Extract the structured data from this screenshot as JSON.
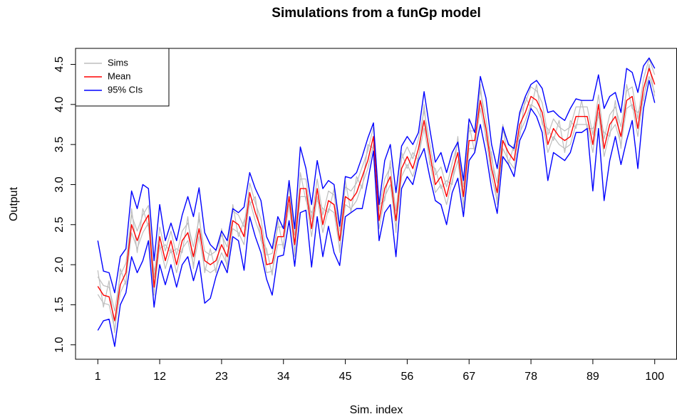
{
  "chart_data": {
    "type": "line",
    "title": "Simulations from a funGp model",
    "x_label": "Sim. index",
    "y_label": "Output",
    "x": [
      1,
      2,
      3,
      4,
      5,
      6,
      7,
      8,
      9,
      10,
      11,
      12,
      13,
      14,
      15,
      16,
      17,
      18,
      19,
      20,
      21,
      22,
      23,
      24,
      25,
      26,
      27,
      28,
      29,
      30,
      31,
      32,
      33,
      34,
      35,
      36,
      37,
      38,
      39,
      40,
      41,
      42,
      43,
      44,
      45,
      46,
      47,
      48,
      49,
      50,
      51,
      52,
      53,
      54,
      55,
      56,
      57,
      58,
      59,
      60,
      61,
      62,
      63,
      64,
      65,
      66,
      67,
      68,
      69,
      70,
      71,
      72,
      73,
      74,
      75,
      76,
      77,
      78,
      79,
      80,
      81,
      82,
      83,
      84,
      85,
      86,
      87,
      88,
      89,
      90,
      91,
      92,
      93,
      94,
      95,
      96,
      97,
      98,
      99,
      100
    ],
    "xlim": [
      -2.96,
      103.96
    ],
    "xticks": [
      1,
      12,
      23,
      34,
      45,
      56,
      67,
      78,
      89,
      100
    ],
    "ylim": [
      0.82,
      4.7
    ],
    "yticks": [
      1.0,
      1.5,
      2.0,
      2.5,
      3.0,
      3.5,
      4.0,
      4.5
    ],
    "yticks_text": [
      "1.0",
      "1.5",
      "2.0",
      "2.5",
      "3.0",
      "3.5",
      "4.0",
      "4.5"
    ],
    "legend": "top-left",
    "series": [
      {
        "name": "Sims",
        "color": "#bebebe",
        "lines": [
          [
            1.85,
            1.74,
            1.72,
            1.42,
            1.87,
            2.02,
            2.62,
            2.42,
            2.62,
            2.74,
            1.84,
            2.47,
            2.17,
            2.42,
            2.12,
            2.42,
            2.52,
            2.22,
            2.57,
            2.17,
            2.12,
            2.17,
            2.37,
            2.22,
            2.67,
            2.62,
            2.47,
            3.02,
            2.77,
            2.57,
            2.12,
            2.14,
            2.47,
            2.47,
            2.97,
            2.37,
            3.07,
            3.07,
            2.57,
            3.07,
            2.62,
            2.92,
            2.87,
            2.42,
            2.97,
            2.92,
            3.02,
            3.22,
            3.42,
            3.72,
            2.67,
            3.07,
            3.22,
            2.67,
            3.32,
            3.47,
            3.32,
            3.57,
            3.92,
            3.52,
            3.12,
            3.22,
            2.97,
            3.27,
            3.52,
            2.97,
            3.67,
            3.67,
            4.17,
            3.82,
            3.32,
            3.02,
            3.67,
            3.52,
            3.42,
            3.87,
            4.02,
            4.22,
            4.17,
            4.02,
            3.62,
            3.82,
            3.72,
            3.67,
            3.72,
            3.97,
            3.97,
            3.97,
            3.62,
            4.12,
            3.57,
            3.87,
            3.97,
            3.72,
            4.17,
            4.22,
            3.82,
            4.32,
            4.57,
            4.37
          ],
          [
            1.63,
            1.52,
            1.5,
            1.2,
            1.65,
            1.8,
            2.4,
            2.2,
            2.4,
            2.52,
            1.62,
            2.25,
            1.95,
            2.2,
            1.9,
            2.2,
            2.3,
            2.0,
            2.35,
            1.95,
            1.9,
            1.95,
            2.15,
            2.0,
            2.45,
            2.4,
            2.25,
            2.8,
            2.55,
            2.35,
            1.9,
            1.92,
            2.25,
            2.25,
            2.75,
            2.15,
            2.85,
            2.85,
            2.35,
            2.85,
            2.4,
            2.7,
            2.65,
            2.2,
            2.75,
            2.7,
            2.8,
            3.0,
            3.2,
            3.5,
            2.45,
            2.85,
            3.0,
            2.45,
            3.1,
            3.25,
            3.1,
            3.35,
            3.7,
            3.3,
            2.9,
            3.0,
            2.75,
            3.05,
            3.3,
            2.75,
            3.45,
            3.45,
            3.95,
            3.6,
            3.1,
            2.8,
            3.45,
            3.3,
            3.2,
            3.65,
            3.8,
            4.0,
            3.95,
            3.8,
            3.4,
            3.6,
            3.5,
            3.45,
            3.5,
            3.75,
            3.75,
            3.75,
            3.4,
            3.9,
            3.35,
            3.65,
            3.75,
            3.5,
            3.95,
            4.0,
            3.6,
            4.1,
            4.35,
            4.15
          ],
          [
            1.93,
            1.47,
            1.8,
            1.15,
            1.95,
            1.75,
            2.7,
            2.15,
            2.7,
            2.47,
            1.92,
            2.2,
            2.25,
            2.15,
            2.2,
            2.15,
            2.6,
            1.95,
            2.65,
            1.9,
            2.2,
            1.9,
            2.45,
            1.95,
            2.75,
            2.35,
            2.55,
            2.75,
            2.85,
            2.3,
            2.2,
            1.87,
            2.55,
            2.2,
            3.05,
            2.1,
            3.15,
            2.8,
            2.65,
            2.8,
            2.7,
            2.65,
            2.95,
            2.15,
            3.05,
            2.65,
            3.1,
            2.95,
            3.5,
            3.45,
            2.75,
            2.8,
            3.3,
            2.4,
            3.4,
            3.2,
            3.4,
            3.3,
            4.0,
            3.25,
            3.2,
            2.95,
            3.05,
            3.0,
            3.6,
            2.7,
            3.75,
            3.4,
            4.25,
            3.55,
            3.4,
            2.75,
            3.75,
            3.25,
            3.5,
            3.6,
            4.1,
            3.95,
            4.25,
            3.75,
            3.7,
            3.55,
            3.8,
            3.4,
            3.8,
            3.7,
            4.05,
            3.7,
            3.7,
            3.85,
            3.65,
            3.6,
            4.05,
            3.45,
            4.25,
            3.95,
            3.9,
            4.05,
            4.5,
            4.1
          ]
        ]
      },
      {
        "name": "Mean",
        "color": "#ff0000",
        "values": [
          1.73,
          1.62,
          1.6,
          1.3,
          1.75,
          1.9,
          2.5,
          2.3,
          2.5,
          2.62,
          1.72,
          2.35,
          2.05,
          2.3,
          2.0,
          2.3,
          2.4,
          2.1,
          2.45,
          2.05,
          2.0,
          2.05,
          2.25,
          2.1,
          2.55,
          2.5,
          2.35,
          2.9,
          2.65,
          2.45,
          2.0,
          2.02,
          2.35,
          2.35,
          2.85,
          2.25,
          2.95,
          2.95,
          2.45,
          2.95,
          2.5,
          2.8,
          2.75,
          2.3,
          2.85,
          2.8,
          2.9,
          3.1,
          3.3,
          3.6,
          2.55,
          2.95,
          3.1,
          2.55,
          3.2,
          3.35,
          3.2,
          3.45,
          3.8,
          3.4,
          3.0,
          3.1,
          2.85,
          3.15,
          3.4,
          2.85,
          3.55,
          3.55,
          4.05,
          3.7,
          3.2,
          2.9,
          3.55,
          3.4,
          3.3,
          3.75,
          3.9,
          4.1,
          4.05,
          3.9,
          3.5,
          3.7,
          3.6,
          3.55,
          3.6,
          3.85,
          3.85,
          3.85,
          3.5,
          4.0,
          3.45,
          3.75,
          3.85,
          3.6,
          4.05,
          4.1,
          3.7,
          4.2,
          4.45,
          4.25
        ]
      },
      {
        "name": "95% CIs",
        "color": "#0000ff",
        "lines": [
          [
            2.3,
            1.92,
            1.9,
            1.65,
            2.1,
            2.2,
            2.92,
            2.7,
            3.0,
            2.95,
            2.05,
            2.75,
            2.3,
            2.52,
            2.3,
            2.62,
            2.85,
            2.6,
            2.96,
            2.4,
            2.25,
            2.18,
            2.42,
            2.3,
            2.7,
            2.65,
            2.72,
            3.15,
            2.95,
            2.8,
            2.35,
            2.2,
            2.6,
            2.45,
            3.05,
            2.45,
            3.47,
            3.2,
            2.75,
            3.3,
            2.95,
            3.05,
            3.0,
            2.48,
            3.1,
            3.08,
            3.15,
            3.35,
            3.58,
            3.77,
            2.75,
            3.3,
            3.5,
            2.9,
            3.48,
            3.6,
            3.5,
            3.65,
            4.16,
            3.7,
            3.28,
            3.4,
            3.15,
            3.4,
            3.53,
            3.05,
            3.82,
            3.65,
            4.35,
            4.08,
            3.5,
            3.2,
            3.72,
            3.5,
            3.45,
            3.9,
            4.1,
            4.25,
            4.3,
            4.2,
            3.9,
            3.92,
            3.85,
            3.8,
            3.95,
            4.07,
            4.05,
            4.05,
            4.05,
            4.37,
            3.95,
            4.1,
            4.15,
            3.9,
            4.45,
            4.4,
            4.15,
            4.48,
            4.58,
            4.45
          ],
          [
            1.18,
            1.3,
            1.32,
            0.98,
            1.5,
            1.65,
            2.1,
            1.9,
            2.05,
            2.3,
            1.47,
            2.0,
            1.75,
            2.0,
            1.72,
            2.0,
            2.1,
            1.8,
            2.05,
            1.52,
            1.58,
            1.85,
            2.05,
            1.9,
            2.35,
            2.3,
            1.93,
            2.6,
            2.35,
            2.15,
            1.82,
            1.62,
            2.1,
            2.12,
            2.55,
            1.98,
            2.65,
            2.68,
            1.97,
            2.6,
            2.1,
            2.48,
            2.15,
            1.99,
            2.6,
            2.65,
            2.7,
            2.7,
            3.05,
            3.42,
            2.3,
            2.65,
            2.75,
            2.1,
            2.95,
            3.1,
            3.0,
            3.3,
            3.45,
            3.1,
            2.8,
            2.75,
            2.5,
            2.9,
            3.08,
            2.6,
            3.3,
            3.4,
            3.75,
            3.4,
            2.95,
            2.64,
            3.35,
            3.25,
            3.1,
            3.55,
            3.7,
            3.95,
            3.85,
            3.65,
            3.05,
            3.4,
            3.35,
            3.3,
            3.4,
            3.65,
            3.65,
            3.7,
            2.92,
            3.7,
            2.8,
            3.3,
            3.6,
            3.25,
            3.55,
            3.8,
            3.2,
            3.95,
            4.3,
            4.02
          ]
        ]
      }
    ]
  }
}
